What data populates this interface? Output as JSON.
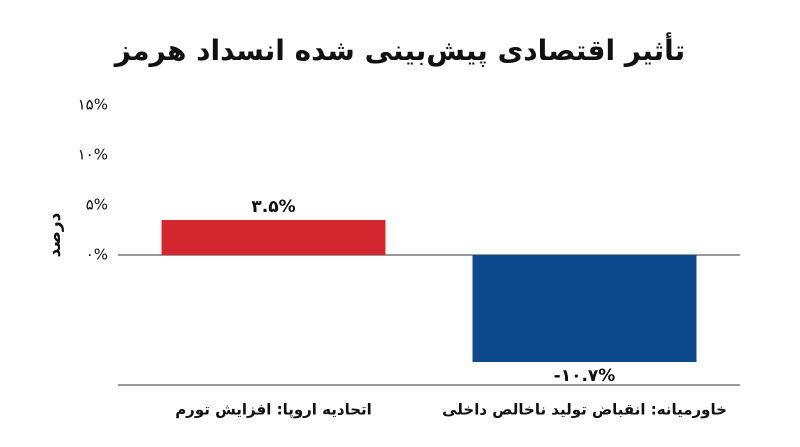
{
  "chart_data": {
    "type": "bar",
    "title": "تأثیر اقتصادی پیش‌بینی شده انسداد هرمز",
    "y_label": "درصد",
    "categories": [
      "اتحادیه اروپا: افزایش تورم",
      "خاورمیانه: انقباض تولید ناخالص داخلی"
    ],
    "values": [
      3.5,
      -10.7
    ],
    "value_labels": [
      "۳.۵%",
      "-۱۰.۷%"
    ],
    "colors": [
      "#d3262f",
      "#0d4a8d"
    ],
    "ylim": [
      -13,
      15
    ],
    "yticks": [
      {
        "value": 0,
        "label": "۰%"
      },
      {
        "value": 5,
        "label": "۵%"
      },
      {
        "value": 10,
        "label": "۱۰%"
      },
      {
        "value": 15,
        "label": "۱۵%"
      }
    ]
  }
}
